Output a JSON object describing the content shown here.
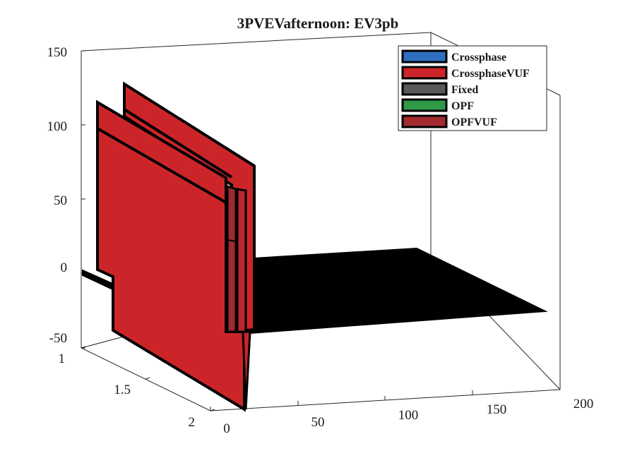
{
  "chart_data": {
    "type": "bar",
    "subtype": "3d-bar",
    "title": "3PVEVafternoon: EV3pb",
    "xlabel": "",
    "ylabel": "",
    "zlabel": "",
    "x_ticks": [
      "0",
      "50",
      "100",
      "150",
      "200"
    ],
    "y_ticks": [
      "1",
      "1.5",
      "2"
    ],
    "z_ticks": [
      "-50",
      "0",
      "50",
      "100",
      "150"
    ],
    "xlim": [
      0,
      200
    ],
    "ylim": [
      1,
      2
    ],
    "zlim": [
      -50,
      150
    ],
    "grid": false,
    "legend_position": "top-right",
    "series": [
      {
        "name": "Crossphase",
        "color": "#2f6fbf",
        "peak": 0
      },
      {
        "name": "CrossphaseVUF",
        "color": "#cc2529",
        "peak": 118
      },
      {
        "name": "Fixed",
        "color": "#595959",
        "peak": 0
      },
      {
        "name": "OPF",
        "color": "#2e9a47",
        "peak": 0
      },
      {
        "name": "OPFVUF",
        "color": "#a32a2e",
        "peak": 0
      }
    ],
    "notes_visible": "Tall red slabs near x=0 reaching about 117-130; a long flat black floor extends from x=0 to x=200 at about 0"
  }
}
